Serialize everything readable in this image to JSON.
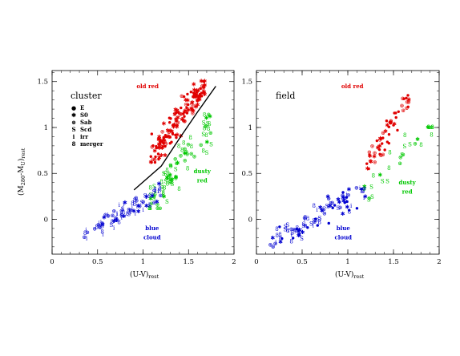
{
  "chart_data": [
    {
      "type": "scatter",
      "title": "cluster",
      "xlabel": "(U-V)",
      "xlabel_sub": "rest",
      "ylabel_main": "(M",
      "ylabel_sub1": "280",
      "ylabel_mid": "-M",
      "ylabel_sub2": "U",
      "ylabel_end": ")",
      "ylabel_sub3": "rest",
      "xlim": [
        0,
        2
      ],
      "ylim": [
        -0.38,
        1.62
      ],
      "xticks": [
        "0",
        "0.5",
        "1",
        "1.5",
        "2"
      ],
      "yticks": [
        "0",
        "0.5",
        "1",
        "1.5"
      ],
      "legend_placement": "top-left",
      "legend": [
        {
          "symbol": "●",
          "label": "E"
        },
        {
          "symbol": "✱",
          "label": "S0"
        },
        {
          "symbol": "⊛",
          "label": "Sab"
        },
        {
          "symbol": "S",
          "label": "Scd"
        },
        {
          "symbol": "i",
          "label": "irr"
        },
        {
          "symbol": "8",
          "label": "merger"
        }
      ],
      "annotations": [
        {
          "text": "old red",
          "color": "#e00000",
          "x": 1.05,
          "y": 1.43
        },
        {
          "text": "dusty",
          "color": "#00c800",
          "x": 1.65,
          "y": 0.5
        },
        {
          "text": "red",
          "color": "#00c800",
          "x": 1.65,
          "y": 0.4
        },
        {
          "text": "blue",
          "color": "#0000d0",
          "x": 1.1,
          "y": -0.12
        },
        {
          "text": "cloud",
          "color": "#0000d0",
          "x": 1.1,
          "y": -0.22
        }
      ],
      "fit_line": {
        "x": [
          0.9,
          1.2,
          1.4,
          1.6,
          1.8
        ],
        "y": [
          0.32,
          0.58,
          0.88,
          1.17,
          1.45
        ]
      },
      "series_colors": {
        "old red": "#e00000",
        "dusty red": "#00c800",
        "blue cloud": "#0000d0"
      },
      "seed": 11,
      "clusters": [
        {
          "group": "old red",
          "n": 150,
          "x": [
            1.05,
            1.68
          ],
          "y": [
            0.62,
            1.5
          ],
          "slope": 1.3,
          "scatter": 0.12,
          "x0": 1.45,
          "y0": 1.15,
          "symbols": [
            "E",
            "S0",
            "E",
            "S0",
            "Sab"
          ]
        },
        {
          "group": "dusty red",
          "n": 85,
          "x": [
            1.05,
            1.75
          ],
          "y": [
            0.12,
            1.2
          ],
          "slope": 1.25,
          "scatter": 0.16,
          "x0": 1.4,
          "y0": 0.58,
          "symbols": [
            "Sab",
            "Scd",
            "merger",
            "S0"
          ]
        },
        {
          "group": "blue cloud",
          "n": 85,
          "x": [
            0.35,
            1.2
          ],
          "y": [
            -0.22,
            0.62
          ],
          "slope": 0.55,
          "scatter": 0.08,
          "x0": 0.75,
          "y0": 0.05,
          "symbols": [
            "Sab",
            "Scd",
            "merger",
            "irr",
            "S0"
          ]
        }
      ]
    },
    {
      "type": "scatter",
      "title": "field",
      "xlabel": "(U-V)",
      "xlabel_sub": "rest",
      "xlim": [
        0,
        2
      ],
      "ylim": [
        -0.38,
        1.62
      ],
      "xticks": [
        "0",
        "0.5",
        "1",
        "1.5",
        "2"
      ],
      "yticks": [
        "0",
        "0.5",
        "1",
        "1.5"
      ],
      "annotations": [
        {
          "text": "old red",
          "color": "#e00000",
          "x": 1.05,
          "y": 1.43
        },
        {
          "text": "dusty",
          "color": "#00c800",
          "x": 1.65,
          "y": 0.38
        },
        {
          "text": "red",
          "color": "#00c800",
          "x": 1.65,
          "y": 0.28
        },
        {
          "text": "blue",
          "color": "#0000d0",
          "x": 0.95,
          "y": -0.12
        },
        {
          "text": "cloud",
          "color": "#0000d0",
          "x": 0.95,
          "y": -0.22
        }
      ],
      "series_colors": {
        "old red": "#e00000",
        "dusty red": "#00c800",
        "blue cloud": "#0000d0"
      },
      "seed": 29,
      "clusters": [
        {
          "group": "old red",
          "n": 55,
          "x": [
            1.2,
            1.68
          ],
          "y": [
            0.55,
            1.35
          ],
          "slope": 1.6,
          "scatter": 0.1,
          "x0": 1.45,
          "y0": 0.95,
          "symbols": [
            "E",
            "S0",
            "E",
            "Sab"
          ]
        },
        {
          "group": "dusty red",
          "n": 28,
          "x": [
            1.15,
            1.95
          ],
          "y": [
            0.0,
            1.0
          ],
          "slope": 0.9,
          "scatter": 0.14,
          "x0": 1.4,
          "y0": 0.55,
          "symbols": [
            "Sab",
            "Scd",
            "merger",
            "S0"
          ]
        },
        {
          "group": "blue cloud",
          "n": 100,
          "x": [
            0.15,
            1.2
          ],
          "y": [
            -0.3,
            0.5
          ],
          "slope": 0.55,
          "scatter": 0.09,
          "x0": 0.7,
          "y0": 0.05,
          "symbols": [
            "Sab",
            "Scd",
            "irr",
            "merger",
            "S0",
            "E"
          ]
        }
      ]
    }
  ]
}
